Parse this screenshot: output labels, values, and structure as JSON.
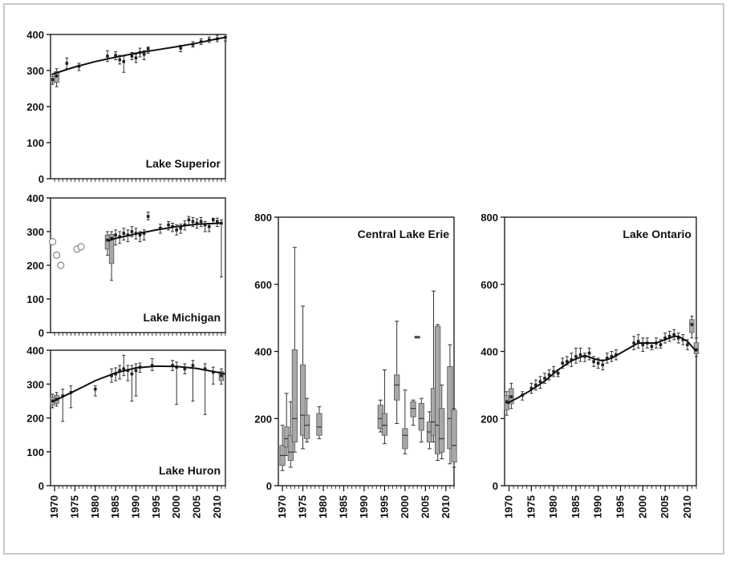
{
  "chart_data": [
    {
      "id": "superior",
      "type": "scatter",
      "title": "Lake Superior",
      "x_range": [
        1969,
        2012
      ],
      "ylim": [
        0,
        400
      ],
      "y_ticks": [
        0,
        100,
        200,
        300,
        400
      ],
      "x_ticks": [],
      "points": [
        {
          "x": 1969.5,
          "y": 275,
          "lo": 262,
          "hi": 290,
          "box": true
        },
        {
          "x": 1970.5,
          "y": 285,
          "lo": 255,
          "hi": 305,
          "box": true
        },
        {
          "x": 1973,
          "y": 320,
          "lo": 305,
          "hi": 335
        },
        {
          "x": 1976,
          "y": 312,
          "lo": 300,
          "hi": 320
        },
        {
          "x": 1983,
          "y": 340,
          "lo": 325,
          "hi": 355
        },
        {
          "x": 1985,
          "y": 342,
          "lo": 330,
          "hi": 352
        },
        {
          "x": 1986,
          "y": 330,
          "lo": 318,
          "hi": 342
        },
        {
          "x": 1987,
          "y": 325,
          "lo": 295,
          "hi": 340
        },
        {
          "x": 1989,
          "y": 340,
          "lo": 330,
          "hi": 350
        },
        {
          "x": 1990,
          "y": 335,
          "lo": 322,
          "hi": 345
        },
        {
          "x": 1991,
          "y": 350,
          "lo": 338,
          "hi": 362
        },
        {
          "x": 1992,
          "y": 345,
          "lo": 330,
          "hi": 355
        },
        {
          "x": 1993,
          "y": 360,
          "lo": 348,
          "hi": 365
        },
        {
          "x": 2001,
          "y": 362,
          "lo": 352,
          "hi": 370
        },
        {
          "x": 2004,
          "y": 372,
          "lo": 365,
          "hi": 380
        },
        {
          "x": 2006,
          "y": 380,
          "lo": 372,
          "hi": 388
        },
        {
          "x": 2008,
          "y": 385,
          "lo": 378,
          "hi": 393
        },
        {
          "x": 2010,
          "y": 388,
          "lo": 380,
          "hi": 398
        },
        {
          "x": 2012,
          "y": 392,
          "lo": 382,
          "hi": 400
        }
      ],
      "circles": [],
      "trend": [
        [
          1969.5,
          290
        ],
        [
          1975,
          310
        ],
        [
          1980,
          325
        ],
        [
          1985,
          337
        ],
        [
          1990,
          348
        ],
        [
          1995,
          357
        ],
        [
          2000,
          366
        ],
        [
          2005,
          376
        ],
        [
          2010,
          388
        ],
        [
          2012,
          392
        ]
      ]
    },
    {
      "id": "michigan",
      "type": "scatter",
      "title": "Lake Michigan",
      "x_range": [
        1969,
        2012
      ],
      "ylim": [
        0,
        400
      ],
      "y_ticks": [
        0,
        100,
        200,
        300,
        400
      ],
      "x_ticks": [],
      "points": [
        {
          "x": 1983,
          "y": 275,
          "lo": 230,
          "hi": 300,
          "box": true
        },
        {
          "x": 1984,
          "y": 280,
          "lo": 155,
          "hi": 300,
          "box": true
        },
        {
          "x": 1985,
          "y": 290,
          "lo": 260,
          "hi": 305
        },
        {
          "x": 1986,
          "y": 285,
          "lo": 265,
          "hi": 300
        },
        {
          "x": 1987,
          "y": 295,
          "lo": 275,
          "hi": 310
        },
        {
          "x": 1988,
          "y": 290,
          "lo": 270,
          "hi": 305
        },
        {
          "x": 1989,
          "y": 300,
          "lo": 285,
          "hi": 315
        },
        {
          "x": 1990,
          "y": 295,
          "lo": 278,
          "hi": 310
        },
        {
          "x": 1991,
          "y": 290,
          "lo": 270,
          "hi": 300
        },
        {
          "x": 1992,
          "y": 295,
          "lo": 275,
          "hi": 305
        },
        {
          "x": 1993,
          "y": 345,
          "lo": 335,
          "hi": 358
        },
        {
          "x": 1996,
          "y": 310,
          "lo": 295,
          "hi": 322
        },
        {
          "x": 1998,
          "y": 320,
          "lo": 305,
          "hi": 330
        },
        {
          "x": 1999,
          "y": 315,
          "lo": 300,
          "hi": 325
        },
        {
          "x": 2000,
          "y": 305,
          "lo": 290,
          "hi": 320
        },
        {
          "x": 2001,
          "y": 310,
          "lo": 295,
          "hi": 322
        },
        {
          "x": 2002,
          "y": 320,
          "lo": 305,
          "hi": 332
        },
        {
          "x": 2003,
          "y": 335,
          "lo": 320,
          "hi": 345
        },
        {
          "x": 2004,
          "y": 330,
          "lo": 315,
          "hi": 342
        },
        {
          "x": 2005,
          "y": 325,
          "lo": 310,
          "hi": 338
        },
        {
          "x": 2006,
          "y": 330,
          "lo": 315,
          "hi": 342
        },
        {
          "x": 2007,
          "y": 320,
          "lo": 300,
          "hi": 330
        },
        {
          "x": 2008,
          "y": 315,
          "lo": 300,
          "hi": 325
        },
        {
          "x": 2009,
          "y": 335,
          "lo": 325,
          "hi": 340
        },
        {
          "x": 2010,
          "y": 330,
          "lo": 315,
          "hi": 340
        },
        {
          "x": 2011,
          "y": 325,
          "lo": 165,
          "hi": 335
        }
      ],
      "circles": [
        {
          "x": 1969.5,
          "y": 270
        },
        {
          "x": 1970.5,
          "y": 230
        },
        {
          "x": 1971.5,
          "y": 200
        },
        {
          "x": 1975.5,
          "y": 248
        },
        {
          "x": 1976.5,
          "y": 255
        }
      ],
      "trend": [
        [
          1983,
          272
        ],
        [
          1985,
          280
        ],
        [
          1990,
          293
        ],
        [
          1995,
          305
        ],
        [
          2000,
          315
        ],
        [
          2005,
          322
        ],
        [
          2011,
          325
        ]
      ]
    },
    {
      "id": "huron",
      "type": "scatter",
      "title": "Lake Huron",
      "x_range": [
        1969,
        2012
      ],
      "ylim": [
        0,
        400
      ],
      "y_ticks": [
        0,
        100,
        200,
        300,
        400
      ],
      "x_ticks": [
        1970,
        1975,
        1980,
        1985,
        1990,
        1995,
        2000,
        2005,
        2010
      ],
      "points": [
        {
          "x": 1969.5,
          "y": 250,
          "lo": 230,
          "hi": 270,
          "box": true
        },
        {
          "x": 1970.5,
          "y": 255,
          "lo": 235,
          "hi": 275,
          "box": true
        },
        {
          "x": 1972,
          "y": 265,
          "lo": 190,
          "hi": 285
        },
        {
          "x": 1974,
          "y": 275,
          "lo": 230,
          "hi": 295
        },
        {
          "x": 1980,
          "y": 285,
          "lo": 265,
          "hi": 295
        },
        {
          "x": 1984,
          "y": 325,
          "lo": 305,
          "hi": 345
        },
        {
          "x": 1985,
          "y": 330,
          "lo": 310,
          "hi": 348
        },
        {
          "x": 1986,
          "y": 340,
          "lo": 315,
          "hi": 355
        },
        {
          "x": 1987,
          "y": 345,
          "lo": 325,
          "hi": 385
        },
        {
          "x": 1988,
          "y": 340,
          "lo": 310,
          "hi": 355
        },
        {
          "x": 1989,
          "y": 330,
          "lo": 250,
          "hi": 355
        },
        {
          "x": 1990,
          "y": 340,
          "lo": 265,
          "hi": 360
        },
        {
          "x": 1991,
          "y": 350,
          "lo": 335,
          "hi": 362
        },
        {
          "x": 1994,
          "y": 355,
          "lo": 340,
          "hi": 375
        },
        {
          "x": 1999,
          "y": 355,
          "lo": 340,
          "hi": 370
        },
        {
          "x": 2000,
          "y": 350,
          "lo": 240,
          "hi": 365
        },
        {
          "x": 2002,
          "y": 345,
          "lo": 330,
          "hi": 360
        },
        {
          "x": 2004,
          "y": 355,
          "lo": 250,
          "hi": 370
        },
        {
          "x": 2007,
          "y": 345,
          "lo": 210,
          "hi": 360
        },
        {
          "x": 2009,
          "y": 335,
          "lo": 300,
          "hi": 350
        },
        {
          "x": 2011,
          "y": 325,
          "lo": 300,
          "hi": 345,
          "box": true
        }
      ],
      "circles": [],
      "trend": [
        [
          1969.5,
          248
        ],
        [
          1975,
          280
        ],
        [
          1980,
          310
        ],
        [
          1985,
          333
        ],
        [
          1990,
          348
        ],
        [
          1995,
          353
        ],
        [
          2000,
          352
        ],
        [
          2005,
          346
        ],
        [
          2010,
          335
        ],
        [
          2012,
          330
        ]
      ]
    },
    {
      "id": "erie",
      "type": "box",
      "title": "Central Lake Erie",
      "x_range": [
        1969,
        2012
      ],
      "ylim": [
        0,
        800
      ],
      "y_ticks": [
        0,
        200,
        400,
        600,
        800
      ],
      "x_ticks": [
        1970,
        1975,
        1980,
        1985,
        1990,
        1995,
        2000,
        2005,
        2010
      ],
      "boxes": [
        {
          "x": 1970,
          "lo": 45,
          "q1": 60,
          "med": 90,
          "q3": 120,
          "hi": 180
        },
        {
          "x": 1971,
          "lo": 90,
          "q1": 115,
          "med": 140,
          "q3": 175,
          "hi": 275
        },
        {
          "x": 1972,
          "lo": 55,
          "q1": 75,
          "med": 100,
          "q3": 150,
          "hi": 250
        },
        {
          "x": 1973,
          "lo": 100,
          "q1": 130,
          "med": 200,
          "q3": 405,
          "hi": 710
        },
        {
          "x": 1975,
          "lo": 110,
          "q1": 150,
          "med": 210,
          "q3": 360,
          "hi": 535
        },
        {
          "x": 1976,
          "lo": 130,
          "q1": 140,
          "med": 180,
          "q3": 210,
          "hi": 260
        },
        {
          "x": 1979,
          "lo": 140,
          "q1": 150,
          "med": 175,
          "q3": 215,
          "hi": 235
        },
        {
          "x": 1994,
          "lo": 160,
          "q1": 170,
          "med": 200,
          "q3": 240,
          "hi": 255
        },
        {
          "x": 1995,
          "lo": 125,
          "q1": 150,
          "med": 180,
          "q3": 215,
          "hi": 345
        },
        {
          "x": 1998,
          "lo": 185,
          "q1": 255,
          "med": 300,
          "q3": 330,
          "hi": 490
        },
        {
          "x": 2000,
          "lo": 95,
          "q1": 110,
          "med": 150,
          "q3": 170,
          "hi": 285
        },
        {
          "x": 2002,
          "lo": 180,
          "q1": 205,
          "med": 230,
          "q3": 250,
          "hi": 255
        },
        {
          "x": 2003,
          "lo": 440,
          "q1": 440,
          "med": 442,
          "q3": 445,
          "hi": 445
        },
        {
          "x": 2004,
          "lo": 130,
          "q1": 165,
          "med": 200,
          "q3": 245,
          "hi": 260
        },
        {
          "x": 2006,
          "lo": 110,
          "q1": 130,
          "med": 160,
          "q3": 190,
          "hi": 220
        },
        {
          "x": 2007,
          "lo": 130,
          "q1": 150,
          "med": 190,
          "q3": 290,
          "hi": 580
        },
        {
          "x": 2008,
          "lo": 75,
          "q1": 95,
          "med": 180,
          "q3": 475,
          "hi": 480
        },
        {
          "x": 2009,
          "lo": 80,
          "q1": 100,
          "med": 140,
          "q3": 230,
          "hi": 300
        },
        {
          "x": 2011,
          "lo": 65,
          "q1": 110,
          "med": 200,
          "q3": 355,
          "hi": 420
        },
        {
          "x": 2012,
          "lo": 55,
          "q1": 70,
          "med": 120,
          "q3": 225,
          "hi": 230
        }
      ]
    },
    {
      "id": "ontario",
      "type": "scatter",
      "title": "Lake Ontario",
      "x_range": [
        1969,
        2012
      ],
      "ylim": [
        0,
        800
      ],
      "y_ticks": [
        0,
        200,
        400,
        600,
        800
      ],
      "x_ticks": [
        1970,
        1975,
        1980,
        1985,
        1990,
        1995,
        2000,
        2005,
        2010
      ],
      "points": [
        {
          "x": 1969.5,
          "y": 250,
          "lo": 210,
          "hi": 280,
          "box": true
        },
        {
          "x": 1970.5,
          "y": 265,
          "lo": 230,
          "hi": 305,
          "box": true
        },
        {
          "x": 1973,
          "y": 270,
          "lo": 255,
          "hi": 280
        },
        {
          "x": 1975,
          "y": 290,
          "lo": 275,
          "hi": 305
        },
        {
          "x": 1976,
          "y": 300,
          "lo": 285,
          "hi": 315
        },
        {
          "x": 1977,
          "y": 310,
          "lo": 290,
          "hi": 325
        },
        {
          "x": 1978,
          "y": 320,
          "lo": 305,
          "hi": 335
        },
        {
          "x": 1979,
          "y": 330,
          "lo": 315,
          "hi": 345
        },
        {
          "x": 1980,
          "y": 340,
          "lo": 325,
          "hi": 355
        },
        {
          "x": 1981,
          "y": 335,
          "lo": 325,
          "hi": 345
        },
        {
          "x": 1982,
          "y": 365,
          "lo": 350,
          "hi": 380
        },
        {
          "x": 1983,
          "y": 370,
          "lo": 360,
          "hi": 385
        },
        {
          "x": 1984,
          "y": 375,
          "lo": 355,
          "hi": 395
        },
        {
          "x": 1985,
          "y": 385,
          "lo": 365,
          "hi": 410
        },
        {
          "x": 1986,
          "y": 390,
          "lo": 370,
          "hi": 410
        },
        {
          "x": 1987,
          "y": 385,
          "lo": 370,
          "hi": 395
        },
        {
          "x": 1988,
          "y": 395,
          "lo": 375,
          "hi": 410
        },
        {
          "x": 1989,
          "y": 370,
          "lo": 355,
          "hi": 385
        },
        {
          "x": 1990,
          "y": 365,
          "lo": 350,
          "hi": 380
        },
        {
          "x": 1991,
          "y": 360,
          "lo": 345,
          "hi": 375
        },
        {
          "x": 1992,
          "y": 380,
          "lo": 365,
          "hi": 395
        },
        {
          "x": 1993,
          "y": 385,
          "lo": 370,
          "hi": 400
        },
        {
          "x": 1994,
          "y": 390,
          "lo": 375,
          "hi": 405
        },
        {
          "x": 1998,
          "y": 425,
          "lo": 405,
          "hi": 445
        },
        {
          "x": 1999,
          "y": 430,
          "lo": 410,
          "hi": 450
        },
        {
          "x": 2000,
          "y": 420,
          "lo": 400,
          "hi": 440
        },
        {
          "x": 2001,
          "y": 425,
          "lo": 410,
          "hi": 440
        },
        {
          "x": 2002,
          "y": 415,
          "lo": 405,
          "hi": 425
        },
        {
          "x": 2003,
          "y": 425,
          "lo": 410,
          "hi": 440
        },
        {
          "x": 2004,
          "y": 420,
          "lo": 410,
          "hi": 435
        },
        {
          "x": 2005,
          "y": 440,
          "lo": 425,
          "hi": 455
        },
        {
          "x": 2006,
          "y": 445,
          "lo": 430,
          "hi": 460
        },
        {
          "x": 2007,
          "y": 450,
          "lo": 435,
          "hi": 465
        },
        {
          "x": 2008,
          "y": 440,
          "lo": 425,
          "hi": 455
        },
        {
          "x": 2009,
          "y": 435,
          "lo": 420,
          "hi": 450
        },
        {
          "x": 2010,
          "y": 420,
          "lo": 405,
          "hi": 435
        },
        {
          "x": 2011,
          "y": 480,
          "lo": 440,
          "hi": 505,
          "box": true
        },
        {
          "x": 2012,
          "y": 405,
          "lo": 385,
          "hi": 440,
          "box": true
        }
      ],
      "circles": [],
      "trend": [
        [
          1969.5,
          245
        ],
        [
          1972,
          262
        ],
        [
          1975,
          285
        ],
        [
          1978,
          312
        ],
        [
          1981,
          345
        ],
        [
          1984,
          372
        ],
        [
          1987,
          388
        ],
        [
          1989,
          378
        ],
        [
          1991,
          372
        ],
        [
          1993,
          380
        ],
        [
          1995,
          395
        ],
        [
          1997,
          410
        ],
        [
          1999,
          425
        ],
        [
          2001,
          425
        ],
        [
          2003,
          425
        ],
        [
          2005,
          435
        ],
        [
          2007,
          445
        ],
        [
          2008,
          445
        ],
        [
          2010,
          430
        ],
        [
          2012,
          400
        ]
      ]
    }
  ]
}
